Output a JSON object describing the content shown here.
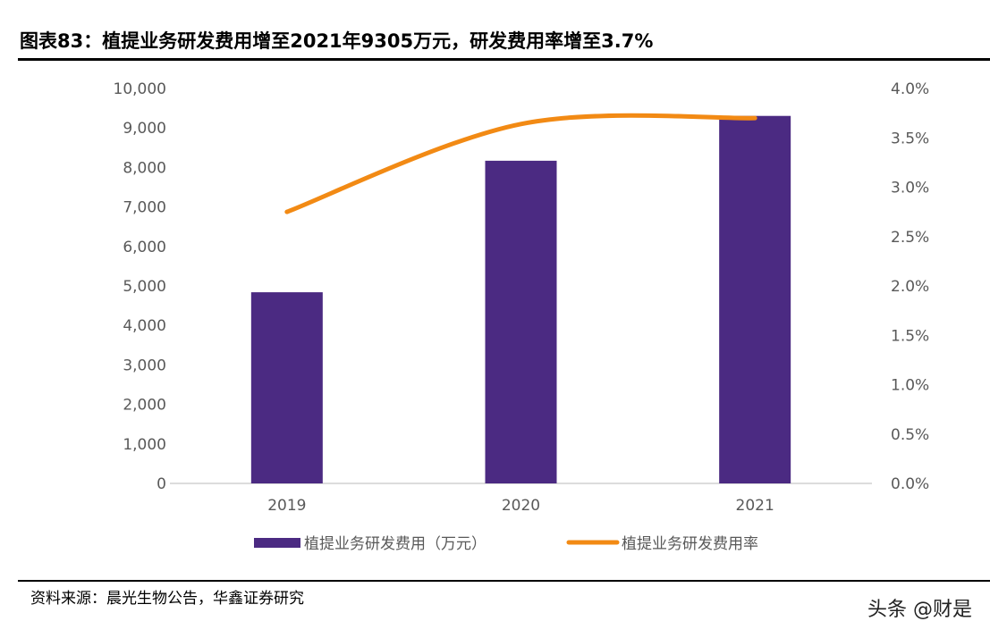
{
  "title": "图表83：植提业务研发费用增至2021年9305万元，研发费用率增至3.7%",
  "source": "资料来源：晨光生物公告，华鑫证券研究",
  "watermark": "头条 @财是",
  "chart_data": {
    "type": "bar+line",
    "categories": [
      "2019",
      "2020",
      "2021"
    ],
    "series": [
      {
        "name": "植提业务研发费用（万元）",
        "type": "bar",
        "axis": "left",
        "values": [
          4840,
          8170,
          9305
        ],
        "color": "#4B2A82"
      },
      {
        "name": "植提业务研发费用率",
        "type": "line",
        "axis": "right",
        "values": [
          2.75,
          3.64,
          3.7
        ],
        "color": "#F28A14"
      }
    ],
    "y_left": {
      "range": [
        0,
        10000
      ],
      "ticks": [
        "0",
        "1,000",
        "2,000",
        "3,000",
        "4,000",
        "5,000",
        "6,000",
        "7,000",
        "8,000",
        "9,000",
        "10,000"
      ]
    },
    "y_right": {
      "range": [
        0,
        4.0
      ],
      "unit": "%",
      "ticks": [
        "0.0%",
        "0.5%",
        "1.0%",
        "1.5%",
        "2.0%",
        "2.5%",
        "3.0%",
        "3.5%",
        "4.0%"
      ]
    },
    "grid": false,
    "legend": "bottom"
  }
}
